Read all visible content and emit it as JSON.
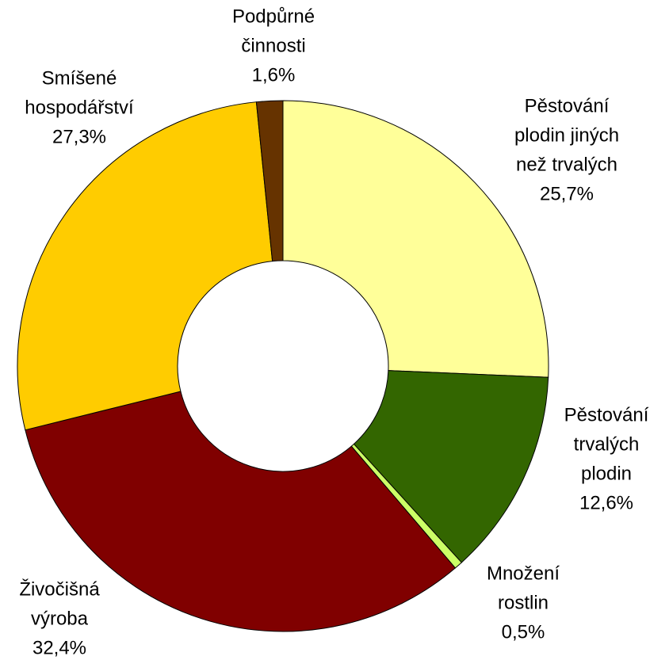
{
  "chart_data": {
    "type": "donut",
    "categories": [
      [
        "Pěstování",
        "plodin jiných",
        "než trvalých"
      ],
      [
        "Pěstování",
        "trvalých",
        "plodin"
      ],
      [
        "Množení",
        "rostlin"
      ],
      [
        "Živočišná",
        "výroba"
      ],
      [
        "Smíšené",
        "hospodářství"
      ],
      [
        "Podpůrné",
        "činnosti"
      ]
    ],
    "values": [
      25.7,
      12.6,
      0.5,
      32.4,
      27.3,
      1.6
    ],
    "value_labels": [
      "25,7%",
      "12,6%",
      "0,5%",
      "32,4%",
      "27,3%",
      "1,6%"
    ],
    "colors": [
      "#ffff99",
      "#336600",
      "#ccff66",
      "#800000",
      "#ffcc00",
      "#663300"
    ]
  }
}
